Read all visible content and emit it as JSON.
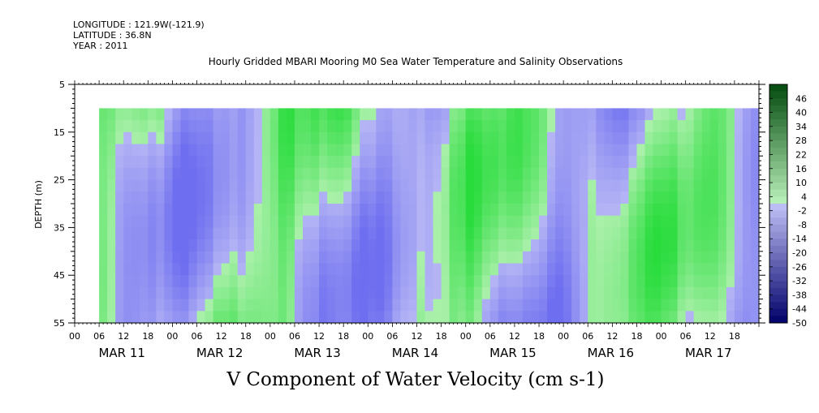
{
  "header": {
    "longitude": "LONGITUDE : 121.9W(-121.9)",
    "latitude": "LATITUDE : 36.8N",
    "year": "YEAR : 2011"
  },
  "chart_data": {
    "type": "heatmap",
    "title": "Hourly Gridded MBARI Mooring M0 Sea Water Temperature and Salinity Observations",
    "xlabel": "V Component of Water Velocity (cm s-1)",
    "ylabel": "DEPTH (m)",
    "ylim": [
      5,
      55
    ],
    "y_inverted": true,
    "y_ticks": [
      5,
      15,
      25,
      35,
      45,
      55
    ],
    "x_range_hours": [
      "MAR 11 00:00",
      "MAR 17 23:00"
    ],
    "x_data_start": "MAR 11 06:00",
    "depth_data_range": [
      10,
      55
    ],
    "x_hour_ticks": [
      "00",
      "06",
      "12",
      "18",
      "00",
      "06",
      "12",
      "18",
      "00",
      "06",
      "12",
      "18",
      "00",
      "06",
      "12",
      "18",
      "00",
      "06",
      "12",
      "18",
      "00",
      "06",
      "12",
      "18",
      "00",
      "06",
      "12",
      "18"
    ],
    "x_day_labels": [
      "MAR 11",
      "MAR 12",
      "MAR 13",
      "MAR 14",
      "MAR 15",
      "MAR 16",
      "MAR 17"
    ],
    "colorbar": {
      "labels": [
        "46",
        "40",
        "34",
        "28",
        "22",
        "16",
        "10",
        "4",
        "-2",
        "-8",
        "-14",
        "-20",
        "-26",
        "-32",
        "-38",
        "-44",
        "-50"
      ],
      "min": -50,
      "max": 52,
      "negative_color": "#8c8cf0",
      "positive_color": "#3cdc64"
    },
    "pattern": "alternating bands of positive (green) and negative (blue) velocity, roughly -15 to +20 cm/s, with vertical streaks through the water column"
  }
}
